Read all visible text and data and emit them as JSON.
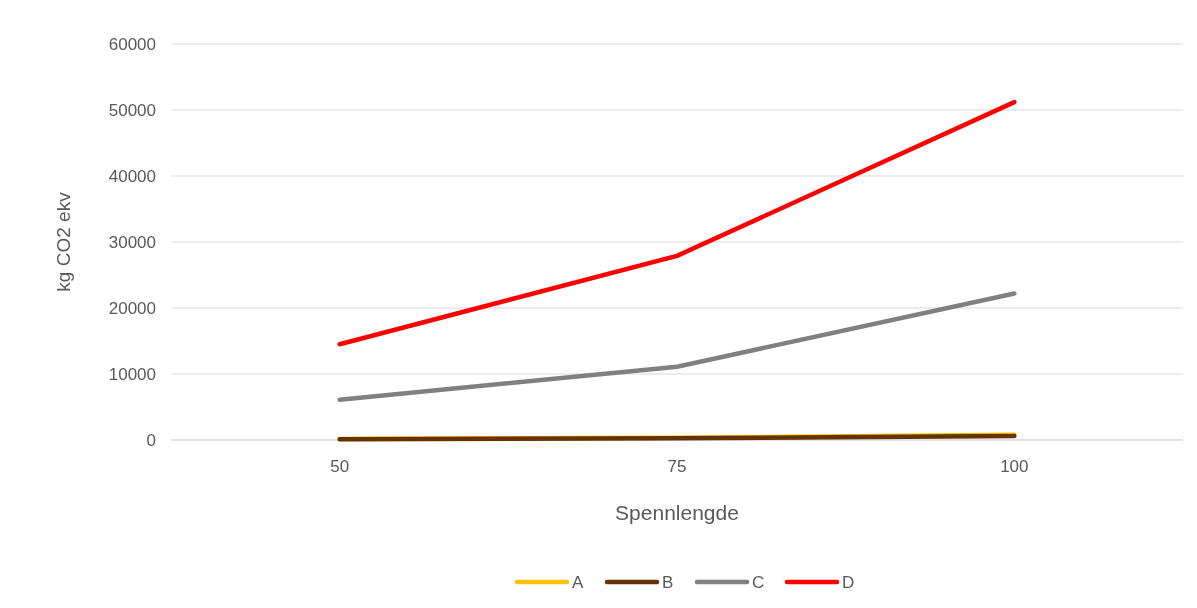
{
  "chart_data": {
    "type": "line",
    "xlabel": "Spennlengde",
    "ylabel": "kg CO2 ekv",
    "categories": [
      "50",
      "75",
      "100"
    ],
    "series": [
      {
        "name": "A",
        "color": "#ffc000",
        "values": [
          150,
          350,
          800
        ]
      },
      {
        "name": "B",
        "color": "#663300",
        "values": [
          100,
          250,
          600
        ]
      },
      {
        "name": "C",
        "color": "#808080",
        "values": [
          6100,
          11100,
          22200
        ]
      },
      {
        "name": "D",
        "color": "#ff0000",
        "values": [
          14500,
          27900,
          51200
        ]
      }
    ],
    "ylim": [
      0,
      60000
    ],
    "yticks": [
      0,
      10000,
      20000,
      30000,
      40000,
      50000,
      60000
    ],
    "grid": "y",
    "legend": "bottom",
    "marker": "none",
    "line_style": "solid"
  }
}
